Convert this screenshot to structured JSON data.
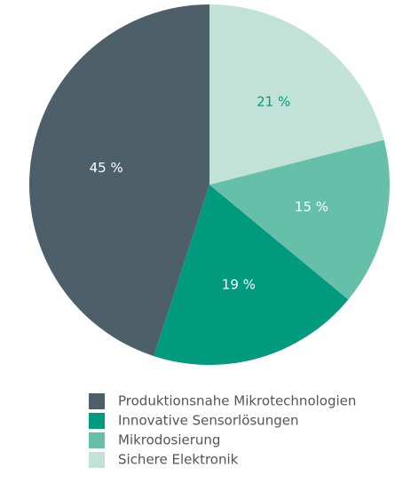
{
  "chart_data": {
    "type": "pie",
    "categories": [
      "Produktionsnahe Mikrotechnologien",
      "Innovative Sensorlösungen",
      "Mikrodosierung",
      "Sichere Elektronik"
    ],
    "values": [
      45,
      19,
      15,
      21
    ],
    "value_labels": [
      "45 %",
      "19 %",
      "15 %",
      "21 %"
    ],
    "colors": [
      "#4d5f69",
      "#009b7f",
      "#66bfa9",
      "#c2e2d8"
    ]
  }
}
